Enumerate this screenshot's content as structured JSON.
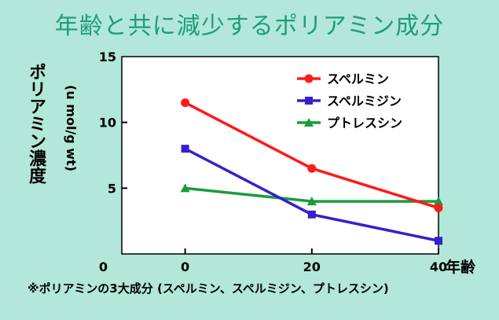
{
  "title": "年齢と共に減少するポリアミン成分",
  "footnote": "※ポリアミンの3大成分 (スペルミン、スペルミジン、プトレスシン)",
  "colors": {
    "background": "#b2e7d9",
    "title": "#1f9c7e"
  },
  "chart_data": {
    "type": "line",
    "ylabel": "ポリアミン濃度",
    "ylabel_unit": "(u mol/g wt)",
    "xlabel": "年齢",
    "x": [
      0,
      20,
      40
    ],
    "x_ticks": [
      "0",
      "20",
      "40"
    ],
    "y_ticks": [
      "0",
      "5",
      "10",
      "15"
    ],
    "xlim": [
      -10,
      40
    ],
    "ylim": [
      0,
      15
    ],
    "legend_position": "top-right",
    "series": [
      {
        "name": "スペルミン",
        "color": "#ff1a1a",
        "marker": "circle",
        "values": [
          11.5,
          6.5,
          3.5
        ]
      },
      {
        "name": "スペルミジン",
        "color": "#3322cc",
        "marker": "square",
        "values": [
          8,
          3,
          1
        ]
      },
      {
        "name": "プトレスシン",
        "color": "#1a9c3a",
        "marker": "triangle",
        "values": [
          5,
          4,
          4
        ]
      }
    ]
  }
}
